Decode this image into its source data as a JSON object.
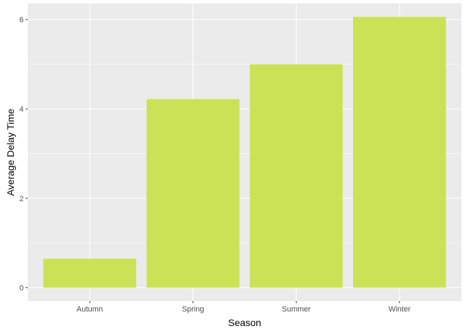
{
  "chart_data": {
    "type": "bar",
    "categories": [
      "Autumn",
      "Spring",
      "Summer",
      "Winter"
    ],
    "values": [
      0.65,
      4.22,
      5.0,
      6.06
    ],
    "xlabel": "Season",
    "ylabel": "Average Delay Time",
    "ylim": [
      -0.3,
      6.36
    ],
    "yticks": [
      0,
      2,
      4,
      6
    ],
    "grid": true,
    "colors": {
      "bar": "#cbe257",
      "panel": "#ebebeb",
      "grid_major": "#ffffff",
      "tick_text": "#4d4d4d"
    }
  }
}
